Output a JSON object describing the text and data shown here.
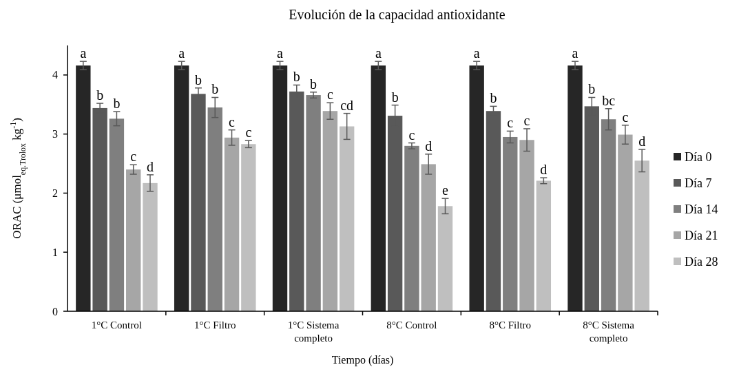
{
  "chart_data": {
    "type": "bar",
    "title": "Evolución de la capacidad antioxidante",
    "xlabel": "Tiempo (días)",
    "ylabel": "ORAC (μmol$_{eq.Trolox}$ kg$^{-1}$)",
    "categories": [
      "1°C Control",
      "1°C Filtro",
      "1°C Sistema completo",
      "8°C Control",
      "8°C Filtro",
      "8°C Sistema completo"
    ],
    "ylim": [
      0,
      4.5
    ],
    "yticks": [
      0,
      1,
      2,
      3,
      4
    ],
    "grid": false,
    "legend": "right",
    "series": [
      {
        "name": "Día 0",
        "color": "#262626",
        "values": [
          4.16,
          4.16,
          4.16,
          4.16,
          4.16,
          4.16
        ],
        "errors": [
          0.07,
          0.07,
          0.07,
          0.07,
          0.07,
          0.07
        ],
        "value_labels": [
          "a",
          "a",
          "a",
          "a",
          "a",
          "a"
        ]
      },
      {
        "name": "Día 7",
        "color": "#595959",
        "values": [
          3.44,
          3.68,
          3.72,
          3.31,
          3.39,
          3.47
        ],
        "errors": [
          0.08,
          0.1,
          0.11,
          0.18,
          0.08,
          0.15
        ],
        "value_labels": [
          "b",
          "b",
          "b",
          "b",
          "b",
          "b"
        ]
      },
      {
        "name": "Día 14",
        "color": "#7f7f7f",
        "values": [
          3.26,
          3.45,
          3.66,
          2.8,
          2.95,
          3.25
        ],
        "errors": [
          0.12,
          0.17,
          0.05,
          0.05,
          0.1,
          0.18
        ],
        "value_labels": [
          "b",
          "b",
          "b",
          "c",
          "c",
          "bc"
        ]
      },
      {
        "name": "Día 21",
        "color": "#a6a6a6",
        "values": [
          2.4,
          2.94,
          3.39,
          2.49,
          2.9,
          2.99
        ],
        "errors": [
          0.08,
          0.13,
          0.14,
          0.17,
          0.19,
          0.16
        ],
        "value_labels": [
          "c",
          "c",
          "c",
          "d",
          "c",
          "c"
        ]
      },
      {
        "name": "Día 28",
        "color": "#bfbfbf",
        "values": [
          2.17,
          2.83,
          3.13,
          1.78,
          2.21,
          2.55
        ],
        "errors": [
          0.14,
          0.06,
          0.22,
          0.13,
          0.05,
          0.19
        ],
        "value_labels": [
          "d",
          "c",
          "cd",
          "e",
          "d",
          "d"
        ]
      }
    ]
  }
}
